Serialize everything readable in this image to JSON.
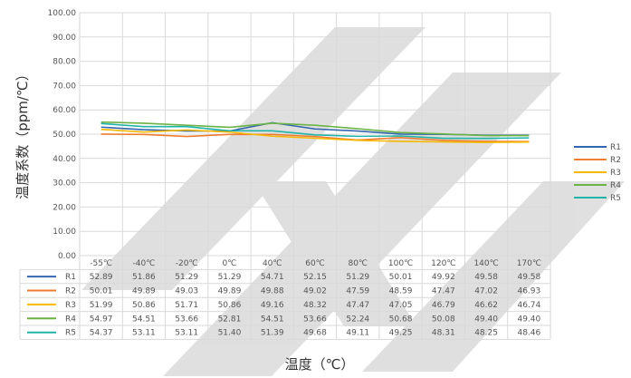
{
  "chart_data": {
    "type": "line",
    "title": "",
    "xlabel": "温度（℃）",
    "ylabel": "温度系数（ppm/℃）",
    "ylim": [
      0,
      100
    ],
    "yticks": [
      "0.00",
      "10.00",
      "20.00",
      "30.00",
      "40.00",
      "50.00",
      "60.00",
      "70.00",
      "80.00",
      "90.00",
      "100.00"
    ],
    "categories": [
      "-55℃",
      "-40℃",
      "-20℃",
      "0℃",
      "40℃",
      "60℃",
      "80℃",
      "100℃",
      "120℃",
      "140℃",
      "170℃"
    ],
    "grid": true,
    "legend": "right",
    "series": [
      {
        "name": "R1",
        "color": "#3466b0",
        "values": [
          52.89,
          51.86,
          51.29,
          51.29,
          54.71,
          52.15,
          51.29,
          50.01,
          49.92,
          49.58,
          49.58
        ],
        "labels": [
          "52.89",
          "51.86",
          "51.29",
          "51.29",
          "54.71",
          "52.15",
          "51.29",
          "50.01",
          "49.92",
          "49.58",
          "49.58"
        ]
      },
      {
        "name": "R2",
        "color": "#ee7d31",
        "values": [
          50.01,
          49.89,
          49.03,
          49.89,
          49.88,
          49.02,
          47.59,
          48.59,
          47.47,
          47.02,
          46.93
        ],
        "labels": [
          "50.01",
          "49.89",
          "49.03",
          "49.89",
          "49.88",
          "49.02",
          "47.59",
          "48.59",
          "47.47",
          "47.02",
          "46.93"
        ]
      },
      {
        "name": "R3",
        "color": "#f5b700",
        "values": [
          51.99,
          50.86,
          51.71,
          50.86,
          49.16,
          48.32,
          47.47,
          47.05,
          46.79,
          46.62,
          46.74
        ],
        "labels": [
          "51.99",
          "50.86",
          "51.71",
          "50.86",
          "49.16",
          "48.32",
          "47.47",
          "47.05",
          "46.79",
          "46.62",
          "46.74"
        ]
      },
      {
        "name": "R4",
        "color": "#6ab344",
        "values": [
          54.97,
          54.51,
          53.66,
          52.81,
          54.51,
          53.66,
          52.24,
          50.68,
          50.08,
          49.4,
          49.4
        ],
        "labels": [
          "54.97",
          "54.51",
          "53.66",
          "52.81",
          "54.51",
          "53.66",
          "52.24",
          "50.68",
          "50.08",
          "49.40",
          "49.40"
        ]
      },
      {
        "name": "R5",
        "color": "#22b3a8",
        "values": [
          54.37,
          53.11,
          53.11,
          51.4,
          51.39,
          49.68,
          49.11,
          49.25,
          48.31,
          48.25,
          48.46
        ],
        "labels": [
          "54.37",
          "53.11",
          "53.11",
          "51.40",
          "51.39",
          "49.68",
          "49.11",
          "49.25",
          "48.31",
          "48.25",
          "48.46"
        ]
      }
    ]
  }
}
